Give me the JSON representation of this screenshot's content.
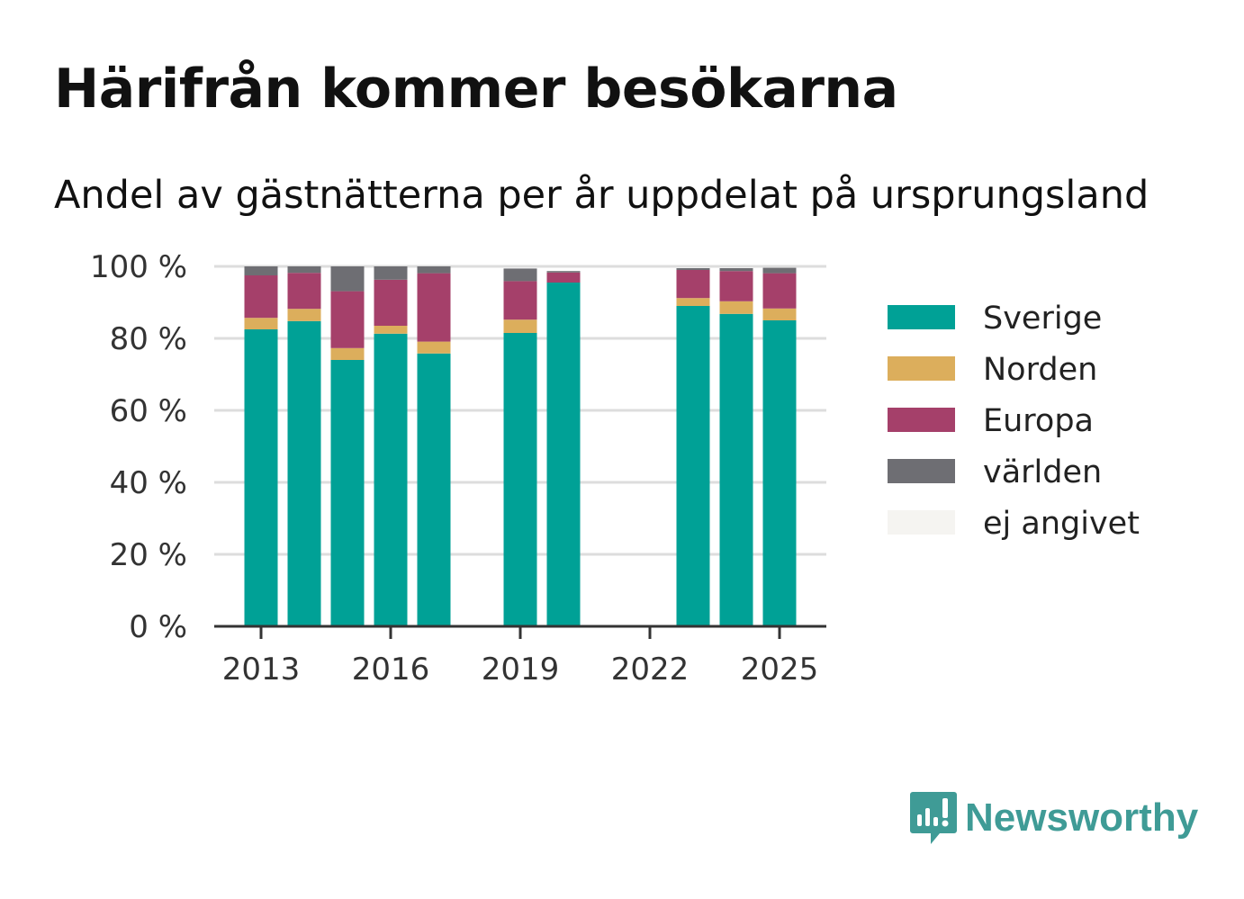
{
  "title": "Härifrån kommer besökarna",
  "subtitle": "Andel av gästnätterna per år uppdelat på ursprungsland",
  "brand": {
    "name": "Newsworthy",
    "icon": "newsworthy-logo-icon",
    "color": "#3f9b96"
  },
  "chart_data": {
    "type": "bar",
    "stacked": true,
    "title": "Härifrån kommer besökarna",
    "subtitle": "Andel av gästnätterna per år uppdelat på ursprungsland",
    "x": [
      2013,
      2014,
      2015,
      2016,
      2017,
      2018,
      2019,
      2020,
      2021,
      2022,
      2023,
      2024,
      2025
    ],
    "x_tick_labels": [
      "2013",
      "2016",
      "2019",
      "2022",
      "2025"
    ],
    "y_tick_labels": [
      "0 %",
      "20 %",
      "40 %",
      "60 %",
      "80 %",
      "100 %"
    ],
    "ylim": [
      0,
      100
    ],
    "grid": true,
    "legend_position": "right",
    "series": [
      {
        "name": "Sverige",
        "color": "#00a196",
        "values": [
          82.5,
          84.8,
          74.0,
          81.3,
          75.8,
          null,
          81.5,
          95.5,
          null,
          null,
          89.0,
          86.8,
          85.0
        ]
      },
      {
        "name": "Norden",
        "color": "#dcae5c",
        "values": [
          3.2,
          3.4,
          3.3,
          2.2,
          3.3,
          null,
          3.7,
          0,
          null,
          null,
          2.2,
          3.5,
          3.3
        ]
      },
      {
        "name": "Europa",
        "color": "#a5406a",
        "values": [
          11.8,
          10.0,
          15.8,
          12.8,
          19.0,
          null,
          10.7,
          2.8,
          null,
          null,
          7.8,
          8.4,
          9.8
        ]
      },
      {
        "name": "världen",
        "color": "#6e6e73",
        "values": [
          2.5,
          1.8,
          6.9,
          3.7,
          1.9,
          null,
          3.5,
          0.4,
          null,
          null,
          0.5,
          0.8,
          1.5
        ]
      },
      {
        "name": "ej angivet",
        "color": "#f5f4f1",
        "values": [
          0,
          0,
          0,
          0,
          0,
          null,
          0,
          0,
          null,
          null,
          0,
          0,
          0
        ]
      }
    ]
  }
}
